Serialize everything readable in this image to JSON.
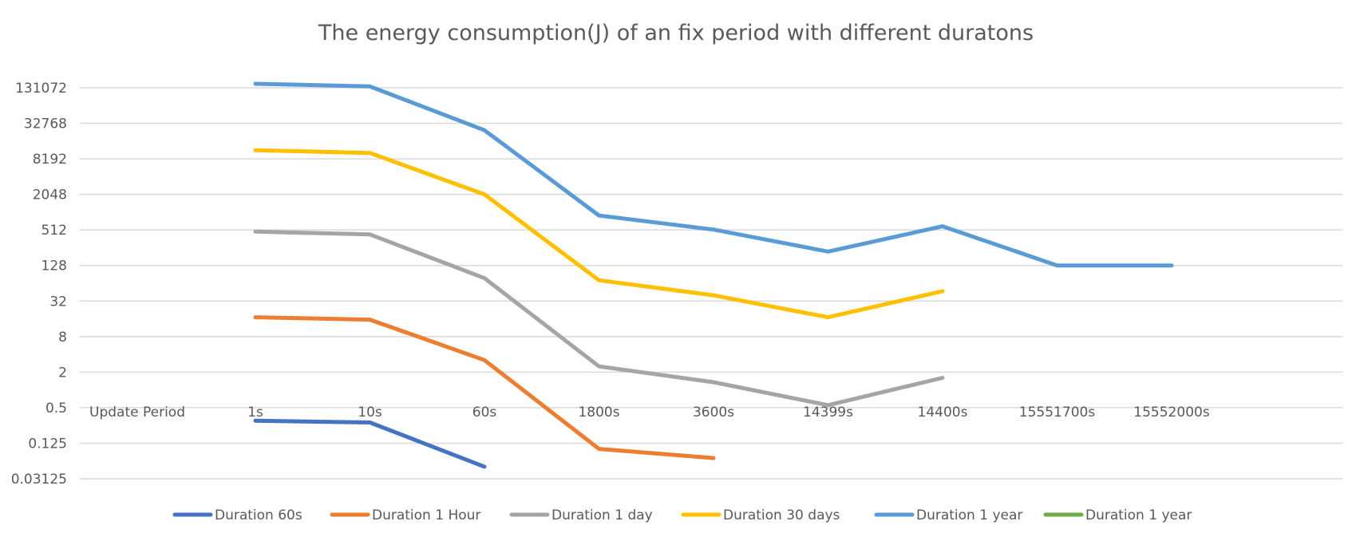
{
  "chart_data": {
    "type": "line",
    "title": "The energy consumption(J) of an fix period with different duratons",
    "xlabel": "Update Period",
    "ylabel": "",
    "y_scale": "log2",
    "y_ticks": [
      "0.03125",
      "0.125",
      "0.5",
      "2",
      "8",
      "32",
      "128",
      "512",
      "2048",
      "8192",
      "32768",
      "131072"
    ],
    "ylim": [
      0.03125,
      131072
    ],
    "categories": [
      "1s",
      "10s",
      "60s",
      "1800s",
      "3600s",
      "14399s",
      "14400s",
      "15551700s",
      "15552000s"
    ],
    "grid": true,
    "legend_position": "bottom",
    "series": [
      {
        "name": "Duration 60s",
        "color": "#4472C4",
        "values": [
          0.3,
          0.28,
          0.05,
          null,
          null,
          null,
          null,
          null,
          null
        ]
      },
      {
        "name": "Duration 1 Hour",
        "color": "#ED7D31",
        "values": [
          17,
          15.5,
          3.2,
          0.1,
          0.07,
          null,
          null,
          null,
          null
        ]
      },
      {
        "name": "Duration 1 day",
        "color": "#A5A5A5",
        "values": [
          480,
          430,
          78,
          2.5,
          1.35,
          0.55,
          1.6,
          null,
          null
        ]
      },
      {
        "name": "Duration 30 days",
        "color": "#FFC000",
        "values": [
          11500,
          10300,
          2050,
          72,
          40,
          17,
          47,
          null,
          null
        ]
      },
      {
        "name": "Duration 1 year",
        "color": "#5B9BD5",
        "values": [
          153000,
          138000,
          25000,
          900,
          520,
          220,
          590,
          128,
          128
        ]
      },
      {
        "name": "Duration 1 year",
        "color": "#70AD47",
        "values": [
          null,
          null,
          null,
          null,
          null,
          null,
          null,
          null,
          null
        ]
      }
    ]
  }
}
